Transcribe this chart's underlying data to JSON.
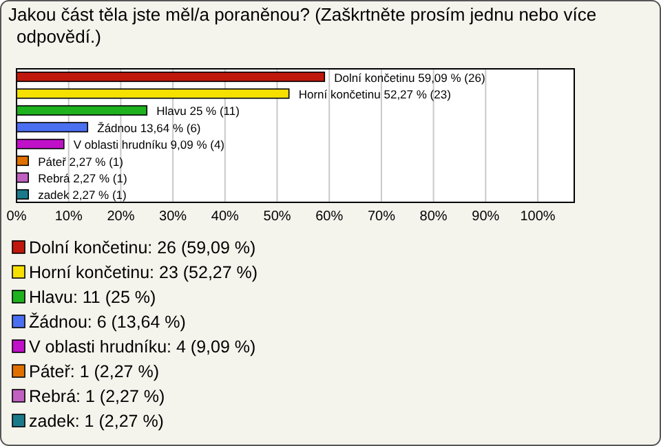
{
  "chart_data": {
    "type": "bar",
    "orientation": "horizontal",
    "title": "Jakou část těla jste měl/a poraněnou? (Zaškrtněte prosím jednu nebo více odpovědí.)",
    "categories": [
      null,
      null,
      null,
      null,
      null,
      null,
      null,
      null
    ],
    "series": [
      {
        "name": "Dolní končetinu: 26 (59,09 %)",
        "color": "#c0180c",
        "values": [
          59.09,
          null,
          null,
          null,
          null,
          null,
          null,
          null
        ],
        "value_labels": [
          "Dolní končetinu 59,09 % (26)",
          null,
          null,
          null,
          null,
          null,
          null,
          null
        ]
      },
      {
        "name": "Horní končetinu: 23 (52,27 %)",
        "color": "#f5e000",
        "values": [
          null,
          52.27,
          null,
          null,
          null,
          null,
          null,
          null
        ],
        "value_labels": [
          null,
          "Horní končetinu 52,27 % (23)",
          null,
          null,
          null,
          null,
          null,
          null
        ]
      },
      {
        "name": "Hlavu: 11 (25 %)",
        "color": "#1fb21f",
        "values": [
          null,
          null,
          25,
          null,
          null,
          null,
          null,
          null
        ],
        "value_labels": [
          null,
          null,
          "Hlavu 25 % (11)",
          null,
          null,
          null,
          null,
          null
        ]
      },
      {
        "name": "Žádnou: 6 (13,64 %)",
        "color": "#4a6ff0",
        "values": [
          null,
          null,
          null,
          13.64,
          null,
          null,
          null,
          null
        ],
        "value_labels": [
          null,
          null,
          null,
          "Žádnou 13,64 % (6)",
          null,
          null,
          null,
          null
        ]
      },
      {
        "name": "V oblasti hrudníku: 4 (9,09 %)",
        "color": "#c010c8",
        "values": [
          null,
          null,
          null,
          null,
          9.09,
          null,
          null,
          null
        ],
        "value_labels": [
          null,
          null,
          null,
          null,
          "V oblasti hrudníku 9,09 % (4)",
          null,
          null,
          null
        ]
      },
      {
        "name": "Páteř: 1 (2,27 %)",
        "color": "#e07000",
        "values": [
          null,
          null,
          null,
          null,
          null,
          2.27,
          null,
          null
        ],
        "value_labels": [
          null,
          null,
          null,
          null,
          null,
          "Páteř 2,27 % (1)",
          null,
          null
        ]
      },
      {
        "name": "Rebrá: 1 (2,27 %)",
        "color": "#c060c0",
        "values": [
          null,
          null,
          null,
          null,
          null,
          null,
          2.27,
          null
        ],
        "value_labels": [
          null,
          null,
          null,
          null,
          null,
          null,
          "Rebrá 2,27 % (1)",
          null
        ]
      },
      {
        "name": "zadek: 1 (2,27 %)",
        "color": "#1a7a8a",
        "values": [
          null,
          null,
          null,
          null,
          null,
          null,
          null,
          2.27
        ],
        "value_labels": [
          null,
          null,
          null,
          null,
          null,
          null,
          null,
          "zadek 2,27 % (1)"
        ]
      }
    ],
    "xlim": [
      0,
      107
    ],
    "xticks": [
      {
        "value": 0,
        "label": "0%"
      },
      {
        "value": 10,
        "label": "10%"
      },
      {
        "value": 20,
        "label": "20%"
      },
      {
        "value": 30,
        "label": "30%"
      },
      {
        "value": 40,
        "label": "40%"
      },
      {
        "value": 50,
        "label": "50%"
      },
      {
        "value": 60,
        "label": "60%"
      },
      {
        "value": 70,
        "label": "70%"
      },
      {
        "value": 80,
        "label": "80%"
      },
      {
        "value": 90,
        "label": "90%"
      },
      {
        "value": 100,
        "label": "100%"
      }
    ],
    "grid": "x",
    "legend": "bottom left"
  }
}
